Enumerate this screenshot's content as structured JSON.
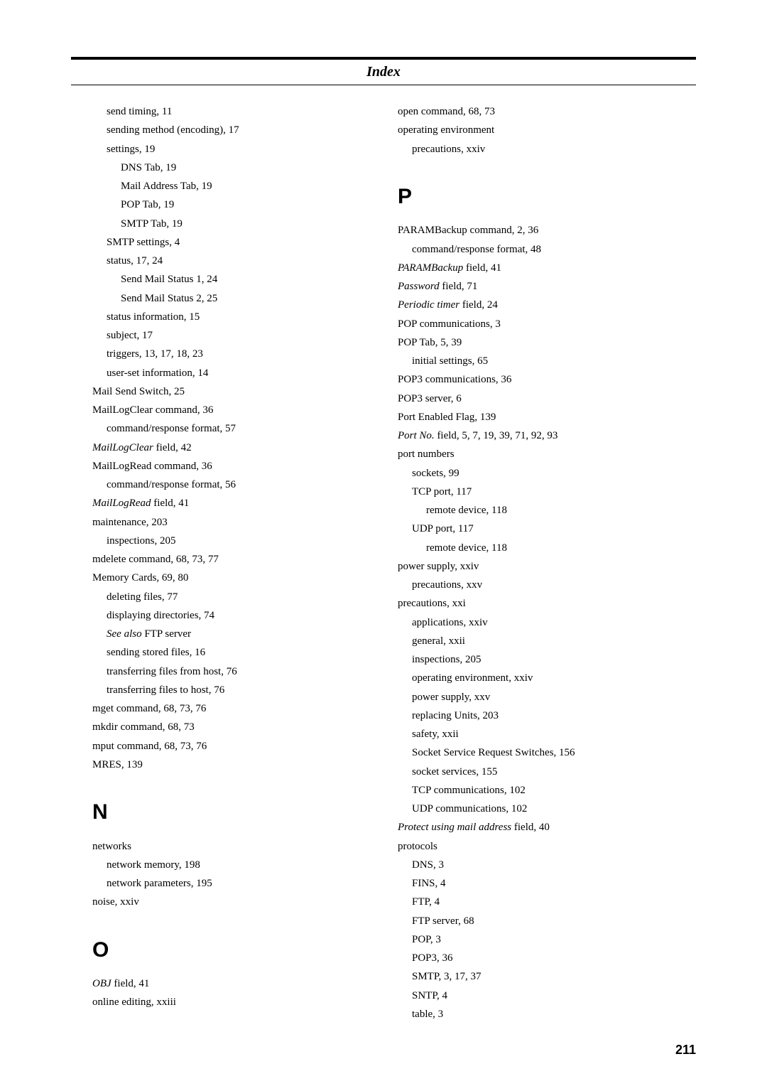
{
  "title": "Index",
  "pageNumber": "211",
  "left": {
    "lines": [
      {
        "cls": "sub1",
        "html": "send timing, 11"
      },
      {
        "cls": "sub1",
        "html": "sending method (encoding), 17"
      },
      {
        "cls": "sub1",
        "html": "settings, 19"
      },
      {
        "cls": "sub2",
        "html": "DNS Tab, 19"
      },
      {
        "cls": "sub2",
        "html": "Mail Address Tab, 19"
      },
      {
        "cls": "sub2",
        "html": "POP Tab, 19"
      },
      {
        "cls": "sub2",
        "html": "SMTP Tab, 19"
      },
      {
        "cls": "sub1",
        "html": "SMTP settings, 4"
      },
      {
        "cls": "sub1",
        "html": "status, 17, 24"
      },
      {
        "cls": "sub2",
        "html": "Send Mail Status 1, 24"
      },
      {
        "cls": "sub2",
        "html": "Send Mail Status 2, 25"
      },
      {
        "cls": "sub1",
        "html": "status information, 15"
      },
      {
        "cls": "sub1",
        "html": "subject, 17"
      },
      {
        "cls": "sub1",
        "html": "triggers, 13, 17, 18, 23"
      },
      {
        "cls": "sub1",
        "html": "user-set information, 14"
      },
      {
        "cls": "entry",
        "html": "Mail Send Switch, 25"
      },
      {
        "cls": "entry",
        "html": "MailLogClear command, 36"
      },
      {
        "cls": "sub1",
        "html": "command/response format, 57"
      },
      {
        "cls": "entry",
        "html": "<span class=\"italic\">MailLogClear</span> field, 42"
      },
      {
        "cls": "entry",
        "html": "MailLogRead command, 36"
      },
      {
        "cls": "sub1",
        "html": "command/response format, 56"
      },
      {
        "cls": "entry",
        "html": "<span class=\"italic\">MailLogRead</span> field, 41"
      },
      {
        "cls": "entry",
        "html": "maintenance, 203"
      },
      {
        "cls": "sub1",
        "html": "inspections, 205"
      },
      {
        "cls": "entry",
        "html": "mdelete command, 68, 73, 77"
      },
      {
        "cls": "entry",
        "html": "Memory Cards, 69, 80"
      },
      {
        "cls": "sub1",
        "html": "deleting files, 77"
      },
      {
        "cls": "sub1",
        "html": "displaying directories, 74"
      },
      {
        "cls": "sub1",
        "html": "<span class=\"italic\">See also</span> FTP server"
      },
      {
        "cls": "sub1",
        "html": "sending stored files, 16"
      },
      {
        "cls": "sub1",
        "html": "transferring files from host, 76"
      },
      {
        "cls": "sub1",
        "html": "transferring files to host, 76"
      },
      {
        "cls": "entry",
        "html": "mget command, 68, 73, 76"
      },
      {
        "cls": "entry",
        "html": "mkdir command, 68, 73"
      },
      {
        "cls": "entry",
        "html": "mput command, 68, 73, 76"
      },
      {
        "cls": "entry",
        "html": "MRES, 139"
      }
    ],
    "sectionN": "N",
    "nLines": [
      {
        "cls": "entry",
        "html": "networks"
      },
      {
        "cls": "sub1",
        "html": "network memory, 198"
      },
      {
        "cls": "sub1",
        "html": "network parameters, 195"
      },
      {
        "cls": "entry",
        "html": "noise, xxiv"
      }
    ],
    "sectionO": "O",
    "oLines": [
      {
        "cls": "entry",
        "html": "<span class=\"italic\">OBJ</span> field, 41"
      },
      {
        "cls": "entry",
        "html": "online editing, xxiii"
      }
    ]
  },
  "right": {
    "topLines": [
      {
        "cls": "entry",
        "html": "open command, 68, 73"
      },
      {
        "cls": "entry",
        "html": "operating environment"
      },
      {
        "cls": "sub1",
        "html": "precautions, xxiv"
      }
    ],
    "sectionP": "P",
    "pLines": [
      {
        "cls": "entry",
        "html": "PARAMBackup command, 2, 36"
      },
      {
        "cls": "sub1",
        "html": "command/response format, 48"
      },
      {
        "cls": "entry",
        "html": "<span class=\"italic\">PARAMBackup</span> field, 41"
      },
      {
        "cls": "entry",
        "html": "<span class=\"italic\">Password</span> field, 71"
      },
      {
        "cls": "entry",
        "html": "<span class=\"italic\">Periodic timer</span> field, 24"
      },
      {
        "cls": "entry",
        "html": "POP communications, 3"
      },
      {
        "cls": "entry",
        "html": "POP Tab, 5, 39"
      },
      {
        "cls": "sub1",
        "html": "initial settings, 65"
      },
      {
        "cls": "entry",
        "html": "POP3 communications, 36"
      },
      {
        "cls": "entry",
        "html": "POP3 server, 6"
      },
      {
        "cls": "entry",
        "html": "Port Enabled Flag, 139"
      },
      {
        "cls": "entry",
        "html": "<span class=\"italic\">Port No.</span> field, 5, 7, 19, 39, 71, 92, 93"
      },
      {
        "cls": "entry",
        "html": "port numbers"
      },
      {
        "cls": "sub1",
        "html": "sockets, 99"
      },
      {
        "cls": "sub1",
        "html": "TCP port, 117"
      },
      {
        "cls": "sub2",
        "html": "remote device, 118"
      },
      {
        "cls": "sub1",
        "html": "UDP port, 117"
      },
      {
        "cls": "sub2",
        "html": "remote device, 118"
      },
      {
        "cls": "entry",
        "html": "power supply, xxiv"
      },
      {
        "cls": "sub1",
        "html": "precautions, xxv"
      },
      {
        "cls": "entry",
        "html": "precautions, xxi"
      },
      {
        "cls": "sub1",
        "html": "applications, xxiv"
      },
      {
        "cls": "sub1",
        "html": "general, xxii"
      },
      {
        "cls": "sub1",
        "html": "inspections, 205"
      },
      {
        "cls": "sub1",
        "html": "operating environment, xxiv"
      },
      {
        "cls": "sub1",
        "html": "power supply, xxv"
      },
      {
        "cls": "sub1",
        "html": "replacing Units, 203"
      },
      {
        "cls": "sub1",
        "html": "safety, xxii"
      },
      {
        "cls": "sub1",
        "html": "Socket Service Request Switches, 156"
      },
      {
        "cls": "sub1",
        "html": "socket services, 155"
      },
      {
        "cls": "sub1",
        "html": "TCP communications, 102"
      },
      {
        "cls": "sub1",
        "html": "UDP communications, 102"
      },
      {
        "cls": "entry",
        "html": "<span class=\"italic\">Protect using mail address</span> field, 40"
      },
      {
        "cls": "entry",
        "html": "protocols"
      },
      {
        "cls": "sub1",
        "html": "DNS, 3"
      },
      {
        "cls": "sub1",
        "html": "FINS, 4"
      },
      {
        "cls": "sub1",
        "html": "FTP, 4"
      },
      {
        "cls": "sub1",
        "html": "FTP server, 68"
      },
      {
        "cls": "sub1",
        "html": "POP, 3"
      },
      {
        "cls": "sub1",
        "html": "POP3, 36"
      },
      {
        "cls": "sub1",
        "html": "SMTP, 3, 17, 37"
      },
      {
        "cls": "sub1",
        "html": "SNTP, 4"
      },
      {
        "cls": "sub1",
        "html": "table, 3"
      }
    ]
  }
}
